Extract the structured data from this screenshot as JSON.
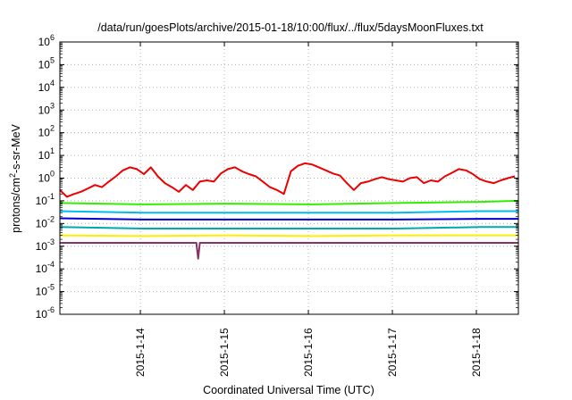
{
  "chart_data": {
    "type": "line",
    "title": "/data/run/goesPlots/archive/2015-01-18/10:00/flux/../flux/5daysMoonFluxes.txt",
    "xlabel": "Coordinated Universal Time (UTC)",
    "ylabel_parts": {
      "pre": "protons/cm",
      "sup": "2",
      "post": "-s-sr-MeV"
    },
    "x_scale": "time",
    "xlim": [
      "2015-01-13T01:00",
      "2015-01-18T12:00"
    ],
    "x_ticks": [
      "2015-1-14",
      "2015-1-15",
      "2015-1-16",
      "2015-1-17",
      "2015-1-18"
    ],
    "y_scale": "log",
    "ylim": [
      1e-06,
      1000000.0
    ],
    "y_ticks": [
      {
        "base": "10",
        "exp": "-6"
      },
      {
        "base": "10",
        "exp": "-5"
      },
      {
        "base": "10",
        "exp": "-4"
      },
      {
        "base": "10",
        "exp": "-3"
      },
      {
        "base": "10",
        "exp": "-2"
      },
      {
        "base": "10",
        "exp": "-1"
      },
      {
        "base": "10",
        "exp": "0"
      },
      {
        "base": "10",
        "exp": "1"
      },
      {
        "base": "10",
        "exp": "2"
      },
      {
        "base": "10",
        "exp": "3"
      },
      {
        "base": "10",
        "exp": "4"
      },
      {
        "base": "10",
        "exp": "5"
      },
      {
        "base": "10",
        "exp": "6"
      }
    ],
    "grid": true,
    "colors": {
      "red": "#ee0000",
      "green": "#33ee00",
      "cyan": "#00bbee",
      "blue": "#0000cc",
      "teal": "#00aaaa",
      "yellow": "#ffee00",
      "purple": "#883366"
    },
    "series": [
      {
        "color_key": "red",
        "x": [
          "2015-01-13T01:00",
          "2015-01-13T03:00",
          "2015-01-13T05:00",
          "2015-01-13T07:00",
          "2015-01-13T09:00",
          "2015-01-13T11:00",
          "2015-01-13T13:00",
          "2015-01-13T15:00",
          "2015-01-13T17:00",
          "2015-01-13T19:00",
          "2015-01-13T21:00",
          "2015-01-13T23:00",
          "2015-01-14T01:00",
          "2015-01-14T03:00",
          "2015-01-14T05:00",
          "2015-01-14T07:00",
          "2015-01-14T09:00",
          "2015-01-14T11:00",
          "2015-01-14T13:00",
          "2015-01-14T15:00",
          "2015-01-14T17:00",
          "2015-01-14T19:00",
          "2015-01-14T21:00",
          "2015-01-14T23:00",
          "2015-01-15T01:00",
          "2015-01-15T03:00",
          "2015-01-15T05:00",
          "2015-01-15T07:00",
          "2015-01-15T09:00",
          "2015-01-15T11:00",
          "2015-01-15T13:00",
          "2015-01-15T15:00",
          "2015-01-15T17:00",
          "2015-01-15T19:00",
          "2015-01-15T21:00",
          "2015-01-15T23:00",
          "2015-01-16T01:00",
          "2015-01-16T03:00",
          "2015-01-16T05:00",
          "2015-01-16T07:00",
          "2015-01-16T09:00",
          "2015-01-16T11:00",
          "2015-01-16T13:00",
          "2015-01-16T15:00",
          "2015-01-16T17:00",
          "2015-01-16T19:00",
          "2015-01-16T21:00",
          "2015-01-16T23:00",
          "2015-01-17T01:00",
          "2015-01-17T03:00",
          "2015-01-17T05:00",
          "2015-01-17T07:00",
          "2015-01-17T09:00",
          "2015-01-17T11:00",
          "2015-01-17T13:00",
          "2015-01-17T15:00",
          "2015-01-17T17:00",
          "2015-01-17T19:00",
          "2015-01-17T21:00",
          "2015-01-17T23:00",
          "2015-01-18T01:00",
          "2015-01-18T03:00",
          "2015-01-18T05:00",
          "2015-01-18T07:00",
          "2015-01-18T09:00",
          "2015-01-18T11:00"
        ],
        "y": [
          0.3,
          0.15,
          0.2,
          0.25,
          0.35,
          0.5,
          0.4,
          0.7,
          1.2,
          2.2,
          3,
          2.5,
          1.5,
          3,
          1.2,
          0.6,
          0.4,
          0.25,
          0.5,
          0.3,
          0.7,
          0.8,
          0.7,
          1.6,
          2.5,
          3,
          2,
          1.5,
          1.2,
          0.7,
          0.4,
          0.3,
          0.2,
          2,
          3.5,
          4.5,
          4,
          3,
          2.2,
          1.6,
          1.3,
          0.6,
          0.3,
          0.6,
          0.7,
          0.9,
          1.1,
          0.9,
          0.8,
          0.7,
          1,
          1.1,
          0.6,
          0.8,
          0.7,
          1.2,
          1.7,
          2.5,
          2.2,
          1.5,
          0.9,
          0.7,
          0.6,
          0.8,
          1,
          1.2
        ]
      },
      {
        "color_key": "green",
        "x": [
          "2015-01-13T01:00",
          "2015-01-14T01:00",
          "2015-01-15T01:00",
          "2015-01-16T01:00",
          "2015-01-17T01:00",
          "2015-01-18T01:00",
          "2015-01-18T12:00"
        ],
        "y": [
          0.08,
          0.07,
          0.075,
          0.07,
          0.08,
          0.09,
          0.1
        ]
      },
      {
        "color_key": "cyan",
        "x": [
          "2015-01-13T01:00",
          "2015-01-14T01:00",
          "2015-01-15T01:00",
          "2015-01-16T01:00",
          "2015-01-17T01:00",
          "2015-01-18T01:00",
          "2015-01-18T12:00"
        ],
        "y": [
          0.035,
          0.03,
          0.03,
          0.03,
          0.03,
          0.035,
          0.035
        ]
      },
      {
        "color_key": "blue",
        "x": [
          "2015-01-13T01:00",
          "2015-01-14T01:00",
          "2015-01-15T01:00",
          "2015-01-16T01:00",
          "2015-01-17T01:00",
          "2015-01-18T01:00",
          "2015-01-18T12:00"
        ],
        "y": [
          0.017,
          0.015,
          0.015,
          0.015,
          0.015,
          0.016,
          0.016
        ]
      },
      {
        "color_key": "teal",
        "x": [
          "2015-01-13T01:00",
          "2015-01-14T01:00",
          "2015-01-15T01:00",
          "2015-01-16T01:00",
          "2015-01-17T01:00",
          "2015-01-18T01:00",
          "2015-01-18T12:00"
        ],
        "y": [
          0.007,
          0.006,
          0.006,
          0.006,
          0.006,
          0.007,
          0.007
        ]
      },
      {
        "color_key": "yellow",
        "x": [
          "2015-01-13T01:00",
          "2015-01-14T01:00",
          "2015-01-15T01:00",
          "2015-01-16T01:00",
          "2015-01-17T01:00",
          "2015-01-18T01:00",
          "2015-01-18T12:00"
        ],
        "y": [
          0.003,
          0.0028,
          0.003,
          0.0028,
          0.003,
          0.003,
          0.003
        ]
      },
      {
        "color_key": "purple",
        "x": [
          "2015-01-13T01:00",
          "2015-01-14T01:00",
          "2015-01-14T16:00",
          "2015-01-14T16:30",
          "2015-01-14T17:00",
          "2015-01-15T01:00",
          "2015-01-16T01:00",
          "2015-01-17T01:00",
          "2015-01-18T01:00",
          "2015-01-18T12:00"
        ],
        "y": [
          0.0014,
          0.0014,
          0.0014,
          0.00028,
          0.0014,
          0.0014,
          0.0014,
          0.0014,
          0.0014,
          0.0014
        ]
      }
    ]
  }
}
